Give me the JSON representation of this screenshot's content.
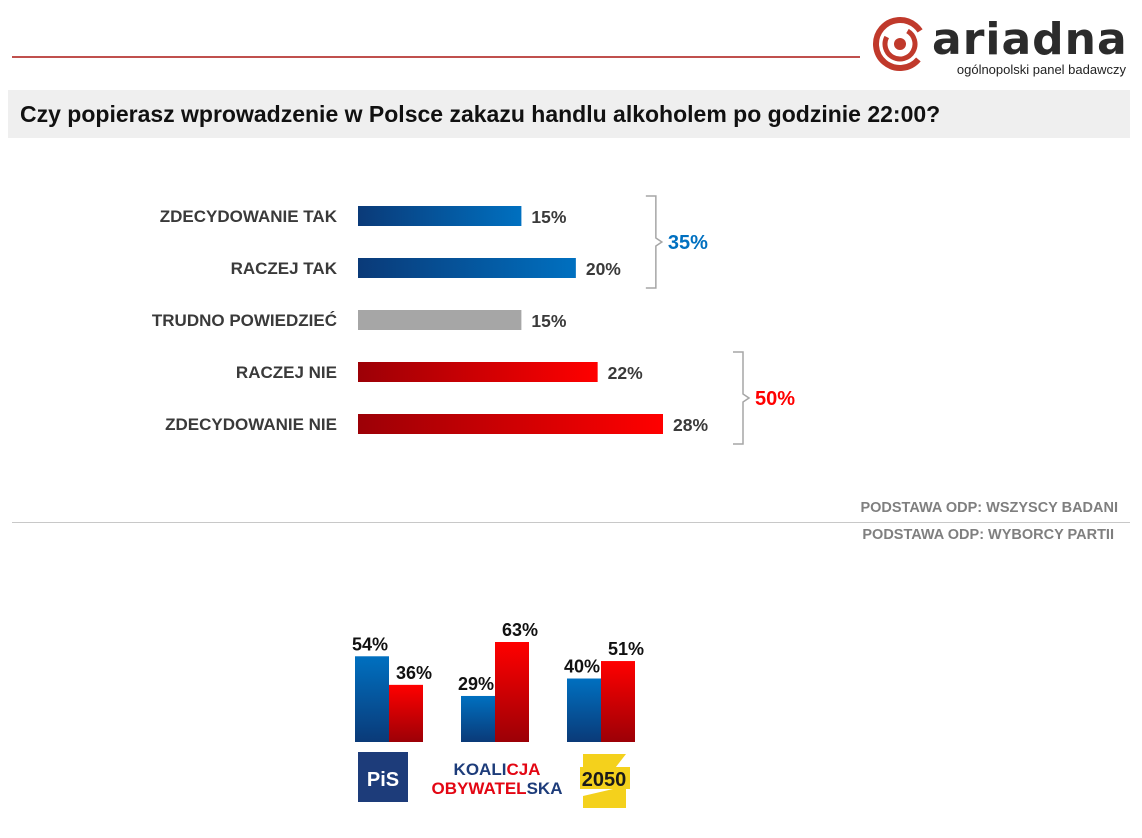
{
  "header": {
    "logo": {
      "word": "ariadna",
      "tagline": "ogólnopolski panel badawczy"
    },
    "question": "Czy popierasz wprowadzenie w Polsce zakazu handlu alkoholem po godzinie 22:00?"
  },
  "colors": {
    "blue": "#0070c0",
    "dark_blue": "#0a3a78",
    "red": "#ff0000",
    "dark_red": "#9c0006",
    "gray": "#a6a6a6"
  },
  "notes": {
    "base_all": "PODSTAWA ODP: WSZYSCY BADANI",
    "base_party": "PODSTAWA ODP: WYBORCY PARTII"
  },
  "chart_data": [
    {
      "type": "bar",
      "orientation": "horizontal",
      "categories": [
        "ZDECYDOWANIE TAK",
        "RACZEJ TAK",
        "TRUDNO POWIEDZIEĆ",
        "RACZEJ NIE",
        "ZDECYDOWANIE NIE"
      ],
      "values": [
        15,
        20,
        15,
        22,
        28
      ],
      "value_labels": [
        "15%",
        "20%",
        "15%",
        "22%",
        "28%"
      ],
      "bar_colors": [
        "blue",
        "blue",
        "gray",
        "red",
        "red"
      ],
      "groups": [
        {
          "label": "35%",
          "from": 0,
          "to": 1,
          "color": "blue"
        },
        {
          "label": "50%",
          "from": 3,
          "to": 4,
          "color": "red"
        }
      ],
      "xlim": [
        0,
        28
      ]
    },
    {
      "type": "bar",
      "categories": [
        "PiS",
        "KOALICJA OBYWATELSKA",
        "2050"
      ],
      "category_logos": [
        {
          "text": "PiS"
        },
        {
          "line1_a": "KOALI",
          "line1_b": "CJA",
          "line2_a": "OBYWATEL",
          "line2_b": "SKA"
        },
        {
          "text": "2050"
        }
      ],
      "series": [
        {
          "color": "blue",
          "values": [
            54,
            29,
            40
          ],
          "labels": [
            "54%",
            "29%",
            "40%"
          ]
        },
        {
          "color": "red",
          "values": [
            36,
            63,
            51
          ],
          "labels": [
            "36%",
            "63%",
            "51%"
          ]
        }
      ],
      "ylim": [
        0,
        63
      ]
    }
  ]
}
